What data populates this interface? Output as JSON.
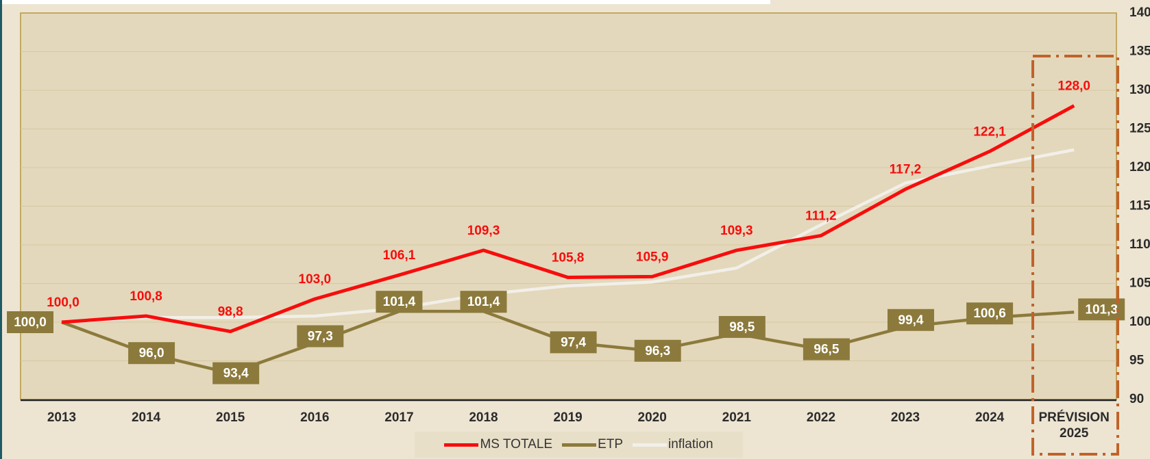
{
  "chart_data": {
    "type": "line",
    "categories": [
      "2013",
      "2014",
      "2015",
      "2016",
      "2017",
      "2018",
      "2019",
      "2020",
      "2021",
      "2022",
      "2023",
      "2024",
      "PRÉVISION 2025"
    ],
    "series": [
      {
        "name": "MS TOTALE",
        "color": "#f70d0d",
        "values": [
          100.0,
          100.8,
          98.8,
          103.0,
          106.1,
          109.3,
          105.8,
          105.9,
          109.3,
          111.2,
          117.2,
          122.1,
          128.0
        ],
        "value_labels": [
          "100,0",
          "100,8",
          "98,8",
          "103,0",
          "106,1",
          "109,3",
          "105,8",
          "105,9",
          "109,3",
          "111,2",
          "117,2",
          "122,1",
          "128,0"
        ]
      },
      {
        "name": "ETP",
        "color": "#8c7a3c",
        "values": [
          100.0,
          96.0,
          93.4,
          97.3,
          101.4,
          101.4,
          97.4,
          96.3,
          98.5,
          96.5,
          99.4,
          100.6,
          101.3
        ],
        "value_labels": [
          "100,0",
          "96,0",
          "93,4",
          "97,3",
          "101,4",
          "101,4",
          "97,4",
          "96,3",
          "98,5",
          "96,5",
          "99,4",
          "100,6",
          "101,3"
        ]
      },
      {
        "name": "inflation",
        "color": "#f2efe9",
        "values": [
          100.0,
          100.6,
          100.6,
          100.8,
          101.8,
          103.6,
          104.7,
          105.2,
          107.0,
          112.6,
          118.0,
          120.2,
          122.3
        ]
      }
    ],
    "ylim": [
      90,
      140
    ],
    "yticks": [
      90,
      95,
      100,
      105,
      110,
      115,
      120,
      125,
      130,
      135,
      140
    ],
    "grid": true,
    "legend": "bottom"
  }
}
